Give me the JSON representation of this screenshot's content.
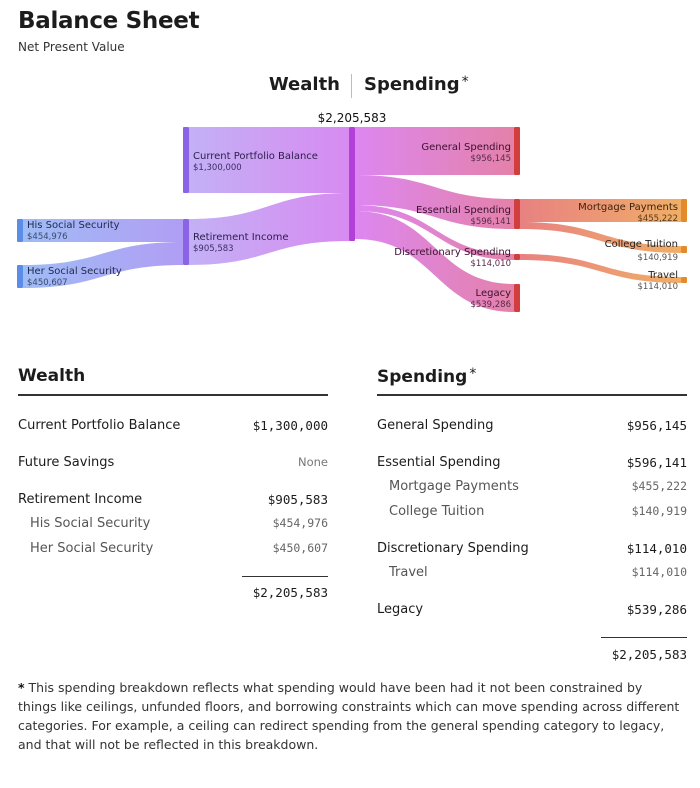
{
  "header": {
    "title": "Balance Sheet",
    "subtitle": "Net Present Value"
  },
  "toggle": {
    "wealth": "Wealth",
    "spending": "Spending",
    "asterisk": "*"
  },
  "diagram": {
    "total_label": "$2,205,583",
    "nodes": {
      "his_ss": {
        "name": "His Social Security",
        "value": "$454,976"
      },
      "her_ss": {
        "name": "Her Social Security",
        "value": "$450,607"
      },
      "portfolio": {
        "name": "Current Portfolio Balance",
        "value": "$1,300,000"
      },
      "retirement": {
        "name": "Retirement Income",
        "value": "$905,583"
      },
      "general": {
        "name": "General Spending",
        "value": "$956,145"
      },
      "essential": {
        "name": "Essential Spending",
        "value": "$596,141"
      },
      "discretionary": {
        "name": "Discretionary Spending",
        "value": "$114,010"
      },
      "legacy": {
        "name": "Legacy",
        "value": "$539,286"
      },
      "mortgage": {
        "name": "Mortgage Payments",
        "value": "$455,222"
      },
      "tuition": {
        "name": "College Tuition",
        "value": "$140,919"
      },
      "travel": {
        "name": "Travel",
        "value": "$114,010"
      }
    },
    "colors": {
      "blue": "#7fa8f2",
      "violet": "#a770ef",
      "magenta": "#c860e8",
      "pink": "#d9609c",
      "red": "#d8403f",
      "orange": "#e8953a"
    }
  },
  "wealth_table": {
    "heading": "Wealth",
    "rows": [
      {
        "label": "Current Portfolio Balance",
        "value": "$1,300,000"
      },
      {
        "label": "Future Savings",
        "value": "None"
      },
      {
        "label": "Retirement Income",
        "value": "$905,583"
      },
      {
        "label": "His Social Security",
        "value": "$454,976"
      },
      {
        "label": "Her Social Security",
        "value": "$450,607"
      }
    ],
    "total": "$2,205,583"
  },
  "spending_table": {
    "heading": "Spending",
    "asterisk": "*",
    "rows": [
      {
        "label": "General Spending",
        "value": "$956,145"
      },
      {
        "label": "Essential Spending",
        "value": "$596,141"
      },
      {
        "label": "Mortgage Payments",
        "value": "$455,222"
      },
      {
        "label": "College Tuition",
        "value": "$140,919"
      },
      {
        "label": "Discretionary Spending",
        "value": "$114,010"
      },
      {
        "label": "Travel",
        "value": "$114,010"
      },
      {
        "label": "Legacy",
        "value": "$539,286"
      }
    ],
    "total": "$2,205,583"
  },
  "footnote": {
    "asterisk": "*",
    "text": "This spending breakdown reflects what spending would have been had it not been constrained by things like ceilings, unfunded floors, and borrowing constraints which can move spending across different categories. For example, a ceiling can redirect spending from the general spending category to legacy, and that will not be reflected in this breakdown."
  }
}
